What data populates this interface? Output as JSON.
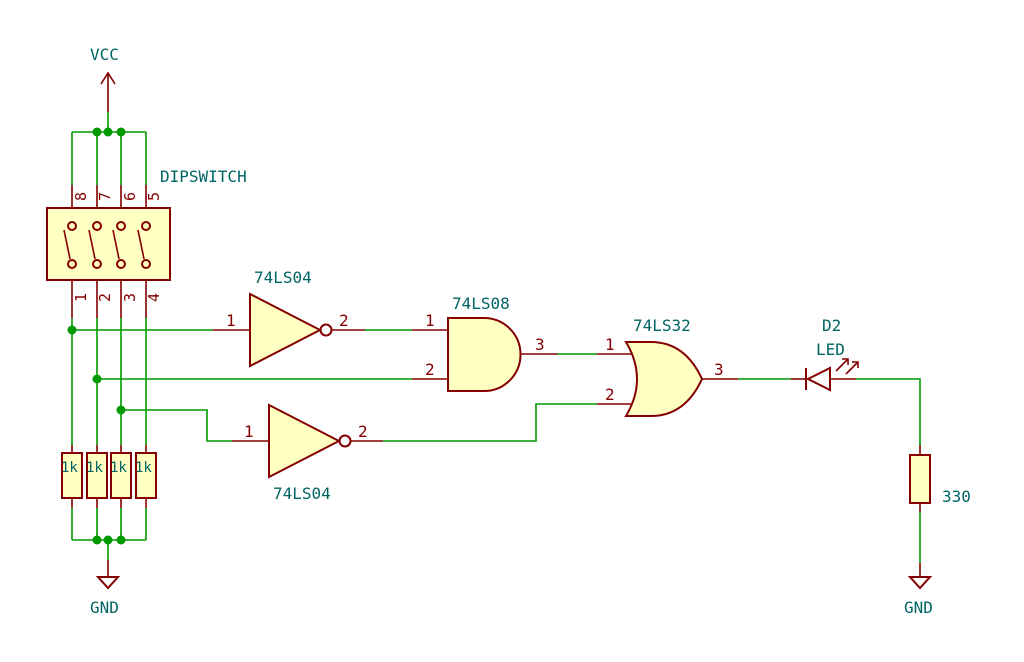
{
  "power": {
    "vcc": "VCC",
    "gnd_left": "GND",
    "gnd_right": "GND"
  },
  "dipswitch": {
    "label": "DIPSWITCH",
    "top_pins": [
      "8",
      "7",
      "6",
      "5"
    ],
    "bottom_pins": [
      "1",
      "2",
      "3",
      "4"
    ]
  },
  "resistors": {
    "pullups": [
      "1k",
      "1k",
      "1k",
      "1k"
    ],
    "led_resistor": "330"
  },
  "gates": {
    "inverter_top": {
      "part": "74LS04",
      "in_pin": "1",
      "out_pin": "2"
    },
    "inverter_bottom": {
      "part": "74LS04",
      "in_pin": "1",
      "out_pin": "2"
    },
    "and_gate": {
      "part": "74LS08",
      "in1_pin": "1",
      "in2_pin": "2",
      "out_pin": "3"
    },
    "or_gate": {
      "part": "74LS32",
      "in1_pin": "1",
      "in2_pin": "2",
      "out_pin": "3"
    }
  },
  "led": {
    "ref": "D2",
    "value": "LED"
  },
  "colors": {
    "wire": "#009900",
    "component": "#840000",
    "component_fill": "#ffffc2",
    "label": "#006464"
  }
}
